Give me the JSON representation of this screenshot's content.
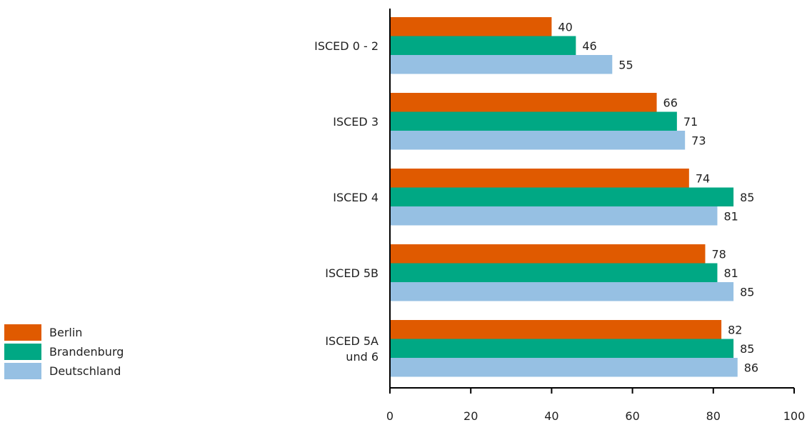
{
  "chart_data": {
    "type": "bar",
    "orientation": "horizontal",
    "categories": [
      "ISCED 0 - 2",
      "ISCED 3",
      "ISCED 4",
      "ISCED 5B",
      "ISCED 5A und 6"
    ],
    "category_lines": [
      [
        "ISCED 0 - 2"
      ],
      [
        "ISCED 3"
      ],
      [
        "ISCED 4"
      ],
      [
        "ISCED 5B"
      ],
      [
        "ISCED 5A",
        "und 6"
      ]
    ],
    "series": [
      {
        "name": "Berlin",
        "color": "#e05a00",
        "values": [
          40,
          66,
          74,
          78,
          82
        ]
      },
      {
        "name": "Brandenburg",
        "color": "#00a884",
        "values": [
          46,
          71,
          85,
          81,
          85
        ]
      },
      {
        "name": "Deutschland",
        "color": "#96c0e3",
        "values": [
          55,
          73,
          81,
          85,
          86
        ]
      }
    ],
    "xlim": [
      0,
      100
    ],
    "xticks": [
      0,
      20,
      40,
      60,
      80,
      100
    ],
    "title": "",
    "xlabel": "",
    "ylabel": "",
    "grid": false,
    "legend": "bottom-left"
  }
}
